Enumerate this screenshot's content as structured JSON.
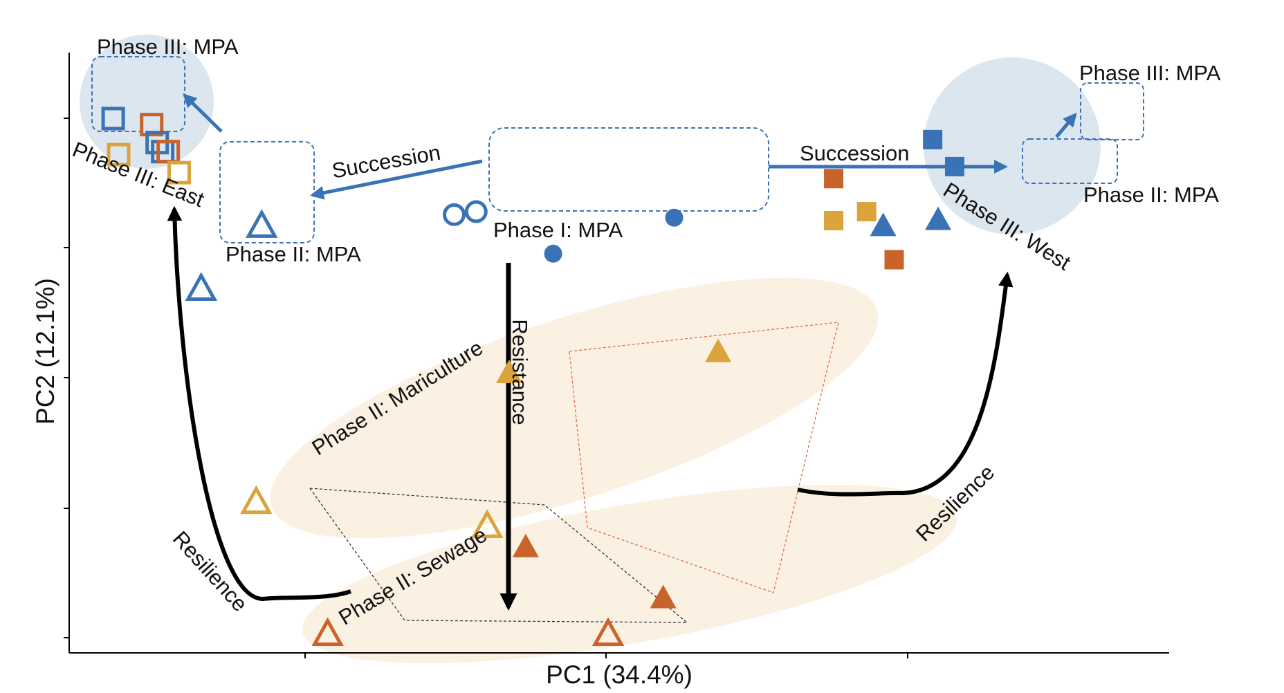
{
  "chart_data": {
    "type": "scatter",
    "xlabel": "PC1 (34.4%)",
    "ylabel": "PC2 (12.1%)",
    "grid": false,
    "colors": {
      "mpa_blue": "#3a73b5",
      "mariculture_gold": "#dba33c",
      "sewage_orange": "#c9632a",
      "ellipse_fill": "#fbf1e2",
      "circle_fill": "#dce6ef",
      "dashed_box": "#3a73b5",
      "maricul_link": "#e06a4f",
      "sewage_link": "#333333",
      "arrow_black": "#000000"
    },
    "symbol_legend": {
      "circle": "Phase I",
      "triangle": "Phase II",
      "square": "Phase III",
      "open_marker": "East",
      "filled_marker": "West"
    },
    "points": [
      {
        "group": "Phase I: MPA",
        "shape": "circle",
        "filled": false,
        "color": "mpa_blue",
        "x": 3.5,
        "y": 7.3
      },
      {
        "group": "Phase I: MPA",
        "shape": "circle",
        "filled": false,
        "color": "mpa_blue",
        "x": 3.7,
        "y": 7.35
      },
      {
        "group": "Phase I: MPA",
        "shape": "circle",
        "filled": true,
        "color": "mpa_blue",
        "x": 4.4,
        "y": 6.65
      },
      {
        "group": "Phase I: MPA",
        "shape": "circle",
        "filled": true,
        "color": "mpa_blue",
        "x": 5.5,
        "y": 7.25
      },
      {
        "group": "Phase II: MPA",
        "shape": "triangle",
        "filled": false,
        "color": "mpa_blue",
        "x": 1.75,
        "y": 7.1
      },
      {
        "group": "Phase II: MPA",
        "shape": "triangle",
        "filled": false,
        "color": "mpa_blue",
        "x": 1.2,
        "y": 6.05
      },
      {
        "group": "Phase II: MPA",
        "shape": "triangle",
        "filled": true,
        "color": "mpa_blue",
        "x": 7.4,
        "y": 7.1
      },
      {
        "group": "Phase II: MPA",
        "shape": "triangle",
        "filled": true,
        "color": "mpa_blue",
        "x": 7.9,
        "y": 7.2
      },
      {
        "group": "Phase III: MPA",
        "shape": "square",
        "filled": false,
        "color": "mpa_blue",
        "x": 0.4,
        "y": 8.9
      },
      {
        "group": "Phase III: MPA",
        "shape": "square",
        "filled": false,
        "color": "sewage_orange",
        "x": 0.75,
        "y": 8.8
      },
      {
        "group": "Phase III: MPA",
        "shape": "square",
        "filled": false,
        "color": "mpa_blue",
        "x": 0.8,
        "y": 8.5
      },
      {
        "group": "Phase III: MPA",
        "shape": "square",
        "filled": false,
        "color": "mpa_blue",
        "x": 0.85,
        "y": 8.35
      },
      {
        "group": "Phase III: East",
        "shape": "square",
        "filled": false,
        "color": "mariculture_gold",
        "x": 0.45,
        "y": 8.3
      },
      {
        "group": "Phase III: East",
        "shape": "square",
        "filled": false,
        "color": "sewage_orange",
        "x": 0.9,
        "y": 8.35
      },
      {
        "group": "Phase III: East",
        "shape": "square",
        "filled": false,
        "color": "mariculture_gold",
        "x": 1.0,
        "y": 8.0
      },
      {
        "group": "Phase III: MPA",
        "shape": "square",
        "filled": true,
        "color": "mpa_blue",
        "x": 7.85,
        "y": 8.55
      },
      {
        "group": "Phase III: MPA",
        "shape": "square",
        "filled": true,
        "color": "mpa_blue",
        "x": 8.05,
        "y": 8.1
      },
      {
        "group": "Phase III: West",
        "shape": "square",
        "filled": true,
        "color": "sewage_orange",
        "x": 6.95,
        "y": 7.9
      },
      {
        "group": "Phase III: West",
        "shape": "square",
        "filled": true,
        "color": "mariculture_gold",
        "x": 6.95,
        "y": 7.2
      },
      {
        "group": "Phase III: West",
        "shape": "square",
        "filled": true,
        "color": "mariculture_gold",
        "x": 7.25,
        "y": 7.35
      },
      {
        "group": "Phase III: West",
        "shape": "square",
        "filled": true,
        "color": "sewage_orange",
        "x": 7.5,
        "y": 6.55
      },
      {
        "group": "Phase II: Mariculture",
        "shape": "triangle",
        "filled": true,
        "color": "mariculture_gold",
        "x": 4.0,
        "y": 4.65
      },
      {
        "group": "Phase II: Mariculture",
        "shape": "triangle",
        "filled": true,
        "color": "mariculture_gold",
        "x": 5.9,
        "y": 5.0
      },
      {
        "group": "Phase II: Mariculture",
        "shape": "triangle",
        "filled": true,
        "color": "sewage_orange",
        "x": 4.15,
        "y": 1.75
      },
      {
        "group": "Phase II: Mariculture",
        "shape": "triangle",
        "filled": true,
        "color": "sewage_orange",
        "x": 5.4,
        "y": 0.9
      },
      {
        "group": "Phase II: Sewage",
        "shape": "triangle",
        "filled": false,
        "color": "mariculture_gold",
        "x": 1.7,
        "y": 2.5
      },
      {
        "group": "Phase II: Sewage",
        "shape": "triangle",
        "filled": false,
        "color": "mariculture_gold",
        "x": 3.8,
        "y": 2.1
      },
      {
        "group": "Phase II: Sewage",
        "shape": "triangle",
        "filled": false,
        "color": "sewage_orange",
        "x": 2.35,
        "y": 0.3
      },
      {
        "group": "Phase II: Sewage",
        "shape": "triangle",
        "filled": false,
        "color": "sewage_orange",
        "x": 4.9,
        "y": 0.3
      }
    ],
    "annotations": [
      {
        "kind": "group-label",
        "text": "Phase I: MPA"
      },
      {
        "kind": "group-label",
        "text": "Phase II: MPA"
      },
      {
        "kind": "group-label",
        "text": "Phase II: MPA"
      },
      {
        "kind": "group-label",
        "text": "Phase III: MPA"
      },
      {
        "kind": "group-label",
        "text": "Phase III: MPA"
      },
      {
        "kind": "group-label",
        "text": "Phase III: East"
      },
      {
        "kind": "group-label",
        "text": "Phase III: West"
      },
      {
        "kind": "group-label",
        "text": "Phase II: Mariculture"
      },
      {
        "kind": "group-label",
        "text": "Phase II: Sewage"
      },
      {
        "kind": "arrow-label",
        "text": "Succession"
      },
      {
        "kind": "arrow-label",
        "text": "Succession"
      },
      {
        "kind": "arrow-label",
        "text": "Resistance"
      },
      {
        "kind": "arrow-label",
        "text": "Resilience"
      },
      {
        "kind": "arrow-label",
        "text": "Resilience"
      }
    ]
  }
}
